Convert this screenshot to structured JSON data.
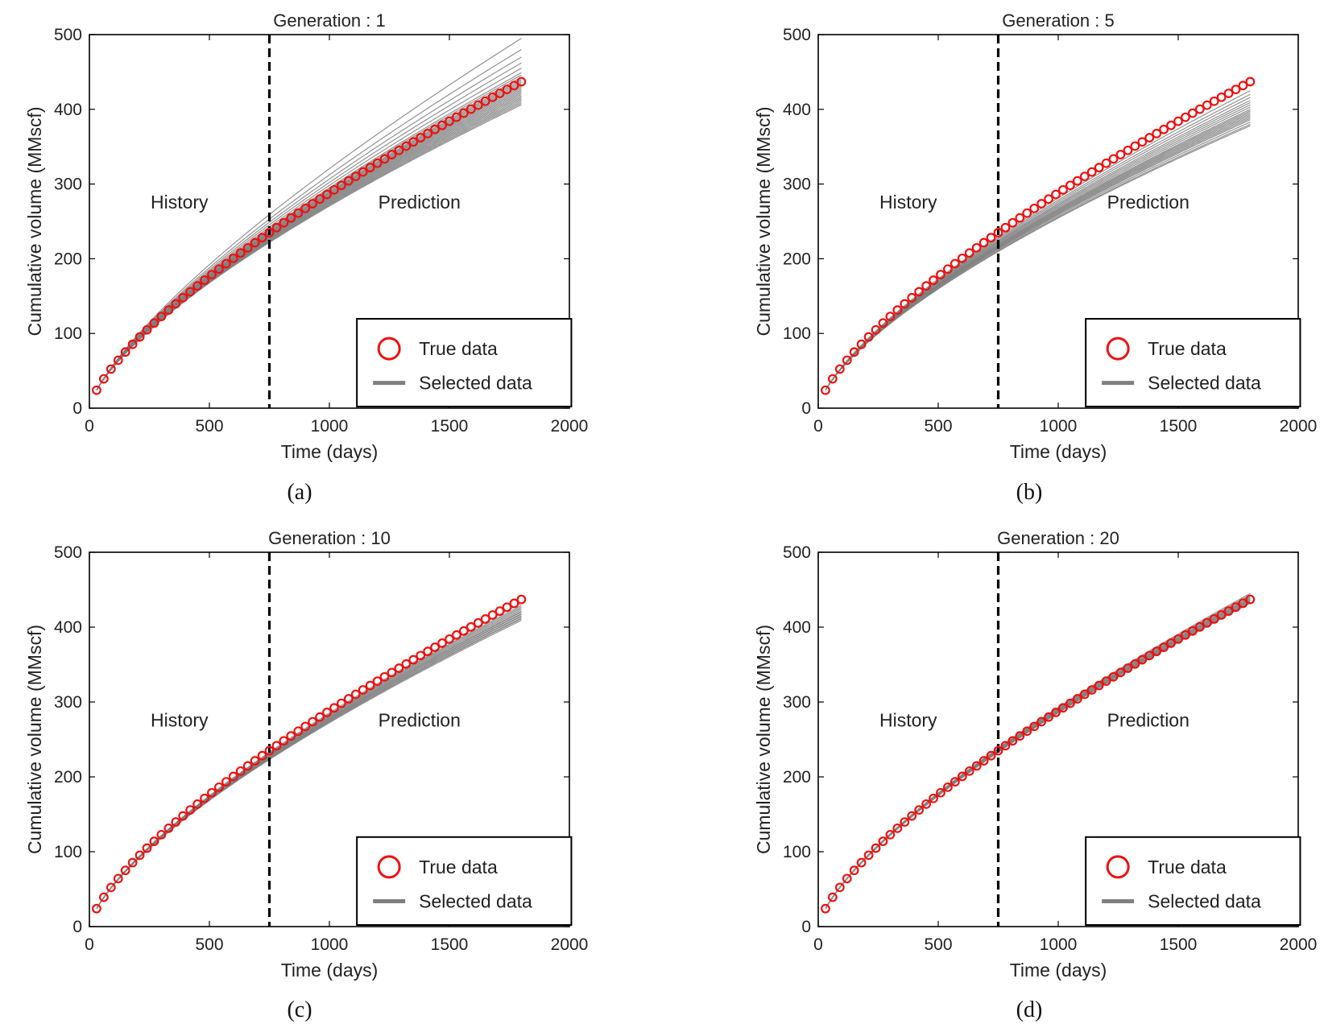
{
  "colors": {
    "true_marker": "#ee1111",
    "selected_line": "#7f7f7f",
    "divider": "#000000"
  },
  "legend": {
    "true_label": "True data",
    "selected_label": "Selected data",
    "placement": "bottom-right"
  },
  "chart_data": [
    {
      "type": "line",
      "caption": "(a)",
      "title": "Generation : 1",
      "xlabel": "Time (days)",
      "ylabel": "Cumulative volume (MMscf)",
      "xlim": [
        0,
        2000
      ],
      "ylim": [
        0,
        500
      ],
      "xticks": [
        "0",
        "500",
        "1000",
        "1500",
        "2000"
      ],
      "yticks": [
        "0",
        "100",
        "200",
        "300",
        "400",
        "500"
      ],
      "divider_x": 750,
      "region_labels": [
        "History",
        "Prediction"
      ],
      "true_data": {
        "x_start": 30,
        "x_step": 30,
        "x_end": 1800,
        "y_start": 24,
        "y_end": 437
      },
      "selected_data": {
        "x_start": 30,
        "x_end": 1800,
        "end_values": [
          495,
          480,
          470,
          462,
          455,
          449,
          446,
          443,
          440,
          438,
          436,
          434,
          432,
          430,
          428,
          426,
          424,
          422,
          420,
          418,
          416,
          414,
          412,
          410,
          408,
          406
        ]
      }
    },
    {
      "type": "line",
      "caption": "(b)",
      "title": "Generation : 5",
      "xlabel": "Time (days)",
      "ylabel": "Cumulative volume (MMscf)",
      "xlim": [
        0,
        2000
      ],
      "ylim": [
        0,
        500
      ],
      "xticks": [
        "0",
        "500",
        "1000",
        "1500",
        "2000"
      ],
      "yticks": [
        "0",
        "100",
        "200",
        "300",
        "400",
        "500"
      ],
      "divider_x": 750,
      "region_labels": [
        "History",
        "Prediction"
      ],
      "true_data": {
        "x_start": 30,
        "x_step": 30,
        "x_end": 1800,
        "y_start": 24,
        "y_end": 437
      },
      "selected_data": {
        "x_start": 30,
        "x_end": 1800,
        "end_values": [
          425,
          420,
          416,
          412,
          409,
          406,
          403,
          400,
          398,
          396,
          394,
          392,
          390,
          388,
          386,
          383,
          380,
          378
        ]
      }
    },
    {
      "type": "line",
      "caption": "(c)",
      "title": "Generation : 10",
      "xlabel": "Time (days)",
      "ylabel": "Cumulative volume (MMscf)",
      "xlim": [
        0,
        2000
      ],
      "ylim": [
        0,
        500
      ],
      "xticks": [
        "0",
        "500",
        "1000",
        "1500",
        "2000"
      ],
      "yticks": [
        "0",
        "100",
        "200",
        "300",
        "400",
        "500"
      ],
      "divider_x": 750,
      "region_labels": [
        "History",
        "Prediction"
      ],
      "true_data": {
        "x_start": 30,
        "x_step": 30,
        "x_end": 1800,
        "y_start": 24,
        "y_end": 437
      },
      "selected_data": {
        "x_start": 30,
        "x_end": 1800,
        "end_values": [
          432,
          429,
          427,
          425,
          423,
          421,
          420,
          418,
          417,
          415,
          414,
          412,
          411,
          409
        ]
      }
    },
    {
      "type": "line",
      "caption": "(d)",
      "title": "Generation : 20",
      "xlabel": "Time (days)",
      "ylabel": "Cumulative volume (MMscf)",
      "xlim": [
        0,
        2000
      ],
      "ylim": [
        0,
        500
      ],
      "xticks": [
        "0",
        "500",
        "1000",
        "1500",
        "2000"
      ],
      "yticks": [
        "0",
        "100",
        "200",
        "300",
        "400",
        "500"
      ],
      "divider_x": 750,
      "region_labels": [
        "History",
        "Prediction"
      ],
      "true_data": {
        "x_start": 30,
        "x_step": 30,
        "x_end": 1800,
        "y_start": 24,
        "y_end": 437
      },
      "selected_data": {
        "x_start": 30,
        "x_end": 1800,
        "end_values": [
          445,
          443,
          442,
          440,
          439,
          438,
          437,
          436,
          435,
          434,
          433,
          432
        ]
      }
    }
  ]
}
